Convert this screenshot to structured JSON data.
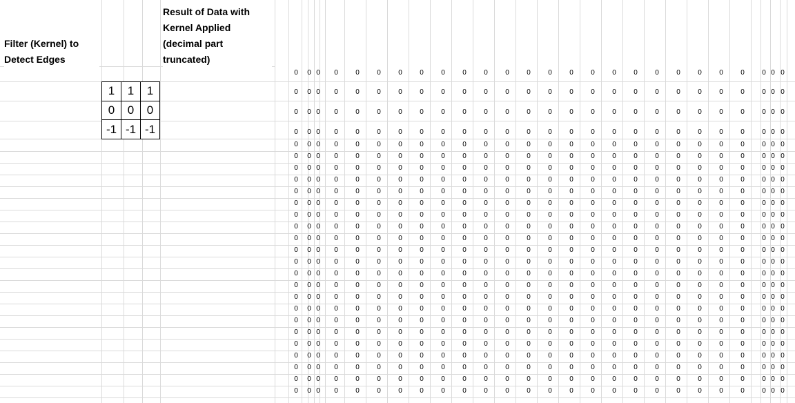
{
  "labels": {
    "filter_title": [
      "Filter (Kernel) to",
      "Detect Edges"
    ],
    "result_title": [
      "Result of Data with",
      "Kernel Applied",
      "(decimal part",
      "truncated)"
    ]
  },
  "kernel": {
    "rows": [
      [
        "1",
        "1",
        "1"
      ],
      [
        "0",
        "0",
        "0"
      ],
      [
        "-1",
        "-1",
        "-1"
      ]
    ]
  },
  "result": {
    "value": "0",
    "row_count": 23,
    "column_count": 24
  }
}
